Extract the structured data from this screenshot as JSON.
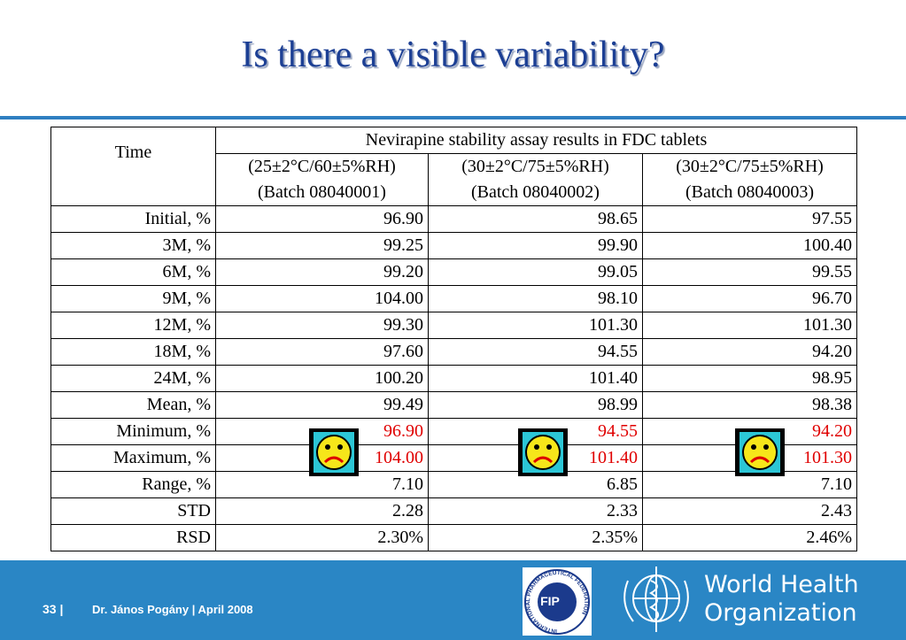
{
  "title": "Is there a visible variability?",
  "table": {
    "header": {
      "time": "Time",
      "group": "Nevirapine stability assay results in FDC tablets",
      "columns": [
        {
          "condition": "(25±2°C/60±5%RH)",
          "batch": "(Batch 08040001)"
        },
        {
          "condition": "(30±2°C/75±5%RH)",
          "batch": "(Batch 08040002)"
        },
        {
          "condition": "(30±2°C/75±5%RH)",
          "batch": "(Batch 08040003)"
        }
      ]
    },
    "rows": [
      {
        "label": "Initial, %",
        "values": [
          "96.90",
          "98.65",
          "97.55"
        ]
      },
      {
        "label": "3M, %",
        "values": [
          "99.25",
          "99.90",
          "100.40"
        ]
      },
      {
        "label": "6M, %",
        "values": [
          "99.20",
          "99.05",
          "99.55"
        ]
      },
      {
        "label": "9M, %",
        "values": [
          "104.00",
          "98.10",
          "96.70"
        ]
      },
      {
        "label": "12M, %",
        "values": [
          "99.30",
          "101.30",
          "101.30"
        ]
      },
      {
        "label": "18M, %",
        "values": [
          "97.60",
          "94.55",
          "94.20"
        ]
      },
      {
        "label": "24M, %",
        "values": [
          "100.20",
          "101.40",
          "98.95"
        ]
      },
      {
        "label": "Mean, %",
        "values": [
          "99.49",
          "98.99",
          "98.38"
        ]
      },
      {
        "label": "Minimum, %",
        "values": [
          "96.90",
          "94.55",
          "94.20"
        ]
      },
      {
        "label": "Maximum, %",
        "values": [
          "104.00",
          "101.40",
          "101.30"
        ]
      },
      {
        "label": "Range, %",
        "values": [
          "7.10",
          "6.85",
          "7.10"
        ]
      },
      {
        "label": "STD",
        "values": [
          "2.28",
          "2.33",
          "2.43"
        ]
      },
      {
        "label": "RSD",
        "values": [
          "2.30%",
          "2.35%",
          "2.46%"
        ]
      }
    ]
  },
  "footer": {
    "page": "33",
    "author": "Dr. János Pogány",
    "date": "April 2008",
    "fip": "FIP",
    "fip_ring": "INTERNATIONAL PHARMACEUTICAL FEDERATION",
    "who_line1": "World Health",
    "who_line2": "Organization"
  }
}
